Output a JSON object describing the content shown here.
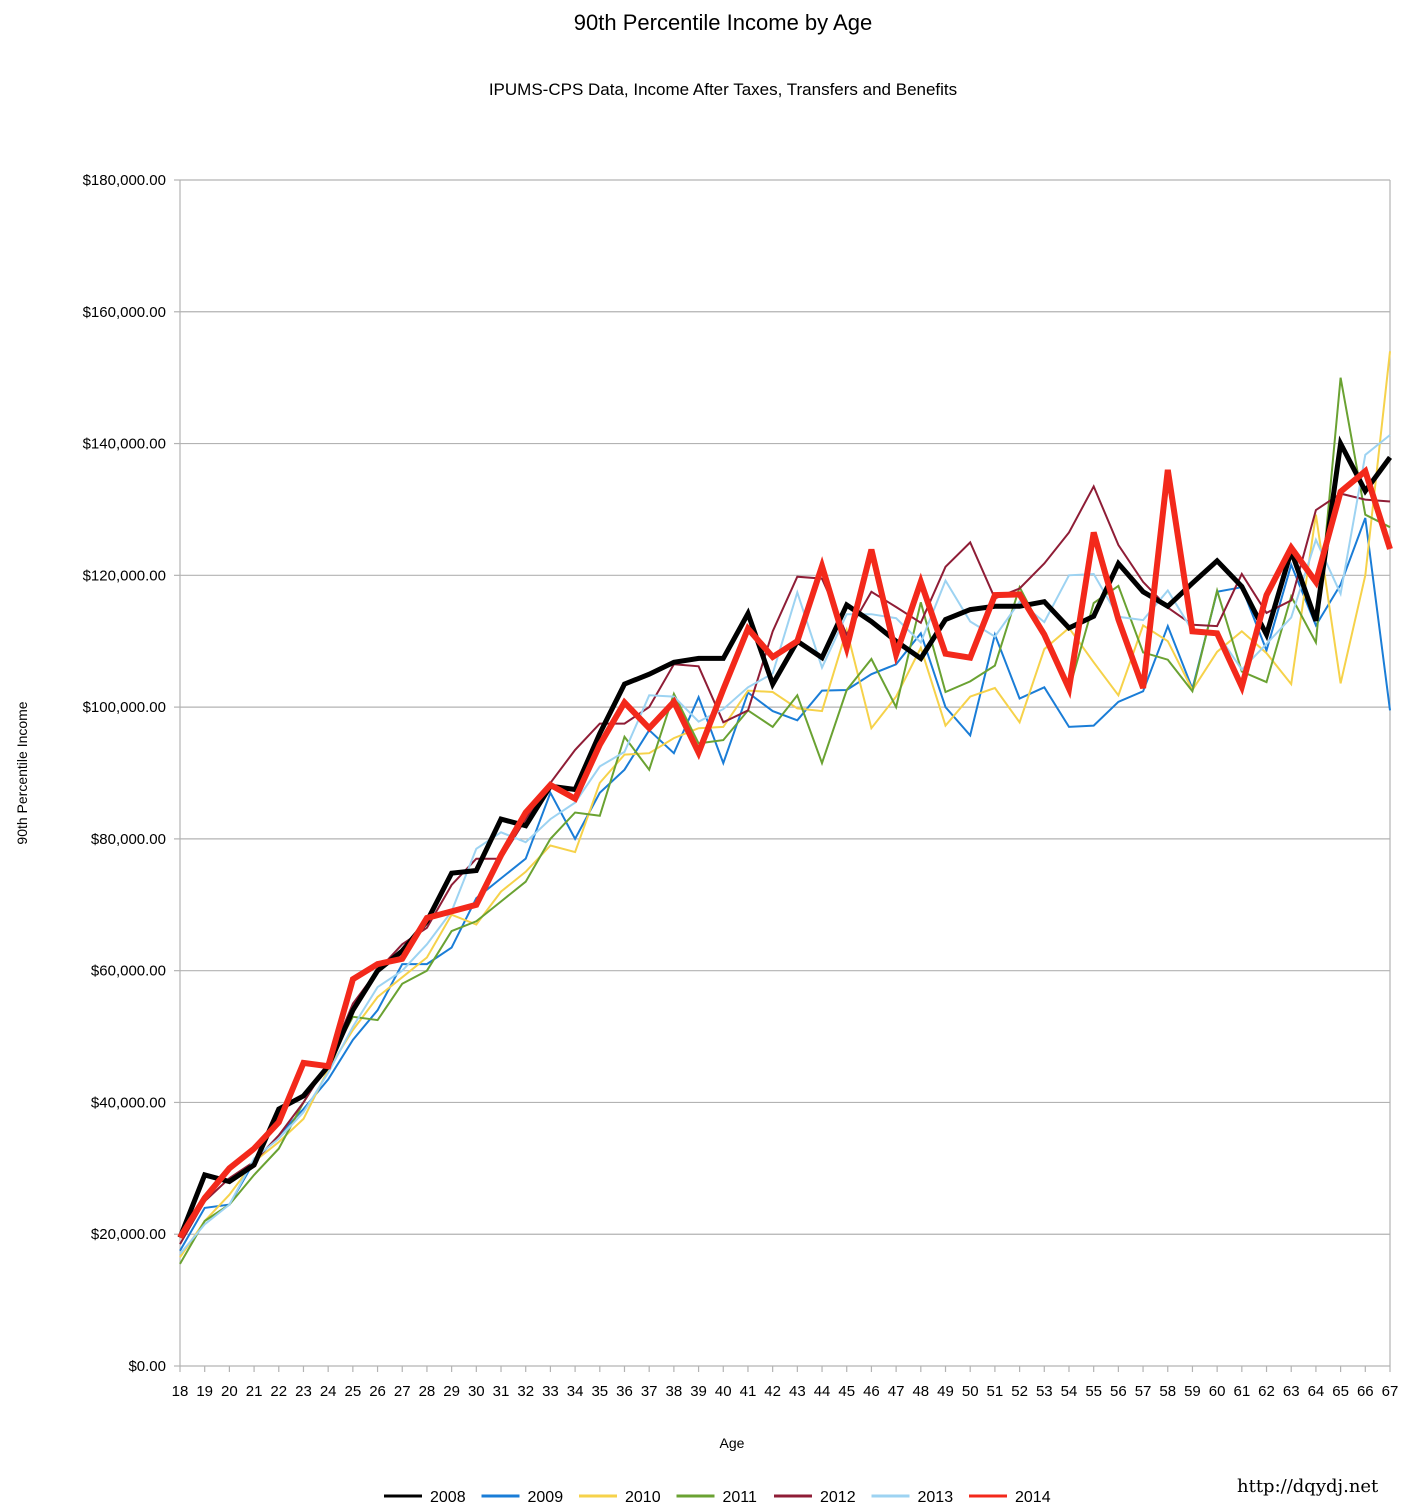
{
  "chart_data": {
    "type": "line",
    "title": "90th Percentile Income by Age",
    "subtitle": "IPUMS-CPS Data, Income After Taxes, Transfers and Benefits",
    "xlabel": "Age",
    "ylabel": "90th Percentile Income",
    "ylim": [
      0,
      180000
    ],
    "ytick_step": 20000,
    "grid": "horizontal",
    "legend_position": "bottom",
    "x": [
      18,
      19,
      20,
      21,
      22,
      23,
      24,
      25,
      26,
      27,
      28,
      29,
      30,
      31,
      32,
      33,
      34,
      35,
      36,
      37,
      38,
      39,
      40,
      41,
      42,
      43,
      44,
      45,
      46,
      47,
      48,
      49,
      50,
      51,
      52,
      53,
      54,
      55,
      56,
      57,
      58,
      59,
      60,
      61,
      62,
      63,
      64,
      65,
      66,
      67
    ],
    "series": [
      {
        "name": "2008",
        "color": "#000000",
        "width": 5,
        "values": [
          19500,
          29000,
          28000,
          30500,
          39000,
          41000,
          45500,
          54000,
          60000,
          63000,
          67500,
          74800,
          75200,
          83000,
          82000,
          88000,
          87500,
          96000,
          103500,
          105000,
          106800,
          107400,
          107400,
          114200,
          103500,
          110000,
          107500,
          115500,
          113000,
          110000,
          107400,
          113300,
          114800,
          115300,
          115300,
          116000,
          112000,
          113800,
          121800,
          117500,
          115300,
          118800,
          122200,
          118300,
          111000,
          123700,
          113100,
          140000,
          132800,
          137900
        ]
      },
      {
        "name": "2009",
        "color": "#1a7dd7",
        "width": 2,
        "values": [
          17500,
          24000,
          24500,
          31000,
          35000,
          39000,
          43500,
          49500,
          54000,
          61000,
          61000,
          63500,
          71000,
          74000,
          77000,
          87000,
          80000,
          87000,
          90500,
          96500,
          93000,
          101500,
          91500,
          102200,
          99400,
          98000,
          102500,
          102600,
          105000,
          106500,
          111200,
          100000,
          95700,
          111000,
          101300,
          103000,
          97000,
          97200,
          100800,
          102400,
          112300,
          102800,
          117500,
          118200,
          108600,
          121600,
          112400,
          118600,
          128700,
          99500
        ]
      },
      {
        "name": "2010",
        "color": "#f6d24a",
        "width": 2,
        "values": [
          16500,
          22000,
          26000,
          31000,
          34000,
          37500,
          45000,
          51000,
          56000,
          59000,
          62000,
          68500,
          67000,
          72000,
          75000,
          79000,
          78000,
          88500,
          92800,
          93000,
          95300,
          96800,
          97000,
          102500,
          102300,
          99800,
          99400,
          111700,
          96800,
          101600,
          109000,
          97200,
          101600,
          102900,
          97700,
          108800,
          112000,
          106800,
          101800,
          112400,
          110000,
          102600,
          108400,
          111500,
          108200,
          103500,
          129200,
          103600,
          120000,
          154000
        ]
      },
      {
        "name": "2011",
        "color": "#6aa232",
        "width": 2,
        "values": [
          15500,
          22000,
          24500,
          29000,
          33000,
          40000,
          46000,
          53000,
          52500,
          58000,
          60000,
          66000,
          67500,
          70500,
          73500,
          80000,
          84000,
          83500,
          95500,
          90500,
          102000,
          94500,
          95000,
          99500,
          97000,
          101800,
          91500,
          102600,
          107300,
          100000,
          115900,
          102300,
          103900,
          106300,
          118200,
          111000,
          102600,
          115800,
          118400,
          108300,
          107200,
          102400,
          117700,
          105400,
          103800,
          116800,
          109800,
          150000,
          129200,
          127300
        ]
      },
      {
        "name": "2012",
        "color": "#8f1d36",
        "width": 2,
        "values": [
          18500,
          25000,
          28500,
          31000,
          35000,
          40000,
          46000,
          55000,
          60000,
          64000,
          66500,
          73000,
          77000,
          77000,
          83000,
          88500,
          93500,
          97500,
          97500,
          100000,
          106500,
          106200,
          97700,
          99500,
          111500,
          119800,
          119500,
          111000,
          117500,
          115200,
          112800,
          121300,
          125000,
          116500,
          118000,
          121800,
          126500,
          133500,
          124600,
          119000,
          115100,
          112500,
          112300,
          120200,
          114300,
          116200,
          129900,
          132400,
          131500,
          131200
        ]
      },
      {
        "name": "2013",
        "color": "#9dd3f2",
        "width": 2,
        "values": [
          17000,
          21500,
          24500,
          31500,
          34500,
          38500,
          44500,
          51500,
          57500,
          60000,
          64000,
          69000,
          78500,
          81000,
          79500,
          83000,
          85500,
          91000,
          93200,
          101800,
          101600,
          97800,
          99700,
          103000,
          105100,
          117400,
          106000,
          114100,
          114100,
          113500,
          109800,
          119200,
          113000,
          110700,
          116000,
          112900,
          120000,
          120200,
          113700,
          113200,
          117700,
          111600,
          111200,
          105700,
          109600,
          113600,
          125400,
          117200,
          138300,
          141300
        ]
      },
      {
        "name": "2014",
        "color": "#f3291b",
        "width": 6,
        "values": [
          19500,
          25500,
          30000,
          33000,
          37000,
          46000,
          45500,
          58700,
          61000,
          61800,
          68000,
          69000,
          70000,
          77500,
          84000,
          88200,
          86100,
          94300,
          100700,
          96800,
          100800,
          93100,
          102700,
          111900,
          107600,
          110000,
          121400,
          109000,
          123900,
          108000,
          119000,
          108100,
          107500,
          117000,
          117100,
          111000,
          102800,
          126500,
          113300,
          102900,
          136000,
          111500,
          111200,
          103100,
          117000,
          124200,
          119000,
          132700,
          135800,
          124000
        ]
      }
    ]
  },
  "watermark": "http://dqydj.net"
}
